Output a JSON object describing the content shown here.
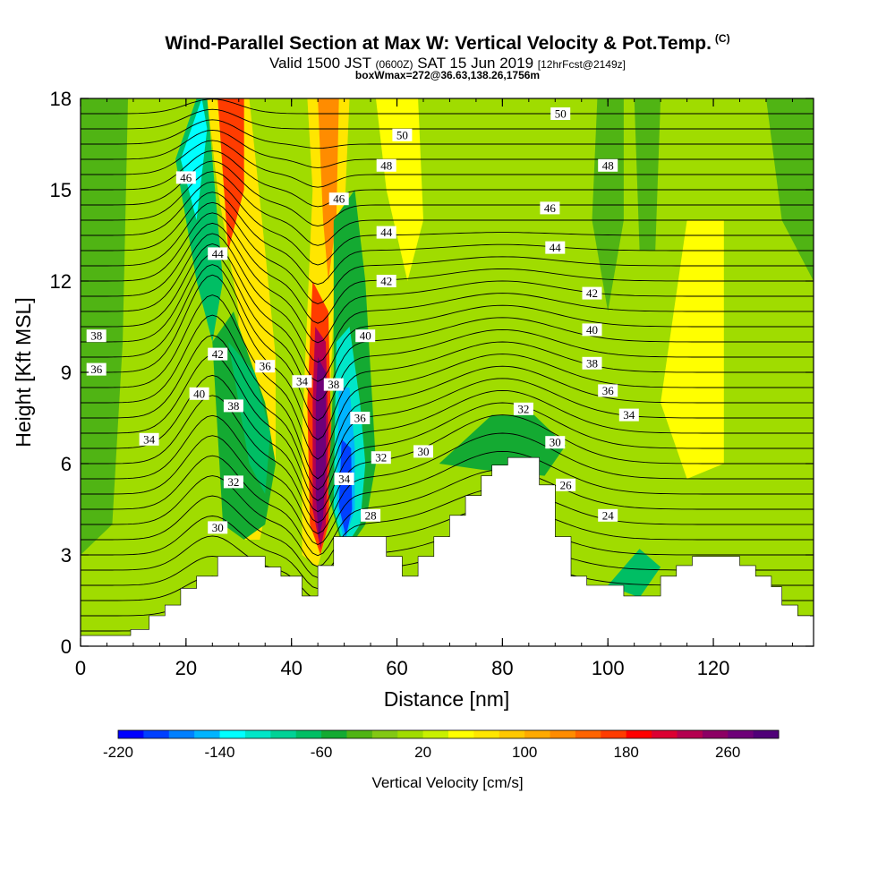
{
  "header": {
    "title": "Wind-Parallel Section at Max W: Vertical Velocity & Pot.Temp.",
    "copyright": "(C)",
    "valid_a": "Valid 1500 JST",
    "valid_b": "(0600Z)",
    "valid_c": "SAT 15 Jun 2019",
    "valid_d": "[12hrFcst@2149z]",
    "boxmax": "boxWmax=272@36.63,138.26,1756m"
  },
  "chart_data": {
    "type": "heatmap",
    "title": "Wind-Parallel Section at Max W: Vertical Velocity & Pot.Temp.",
    "xlabel": "Distance [nm]",
    "ylabel": "Height [Kft MSL]",
    "xlim": [
      0,
      139
    ],
    "ylim": [
      0,
      18
    ],
    "x_ticks": [
      "0",
      "20",
      "40",
      "60",
      "80",
      "100",
      "120"
    ],
    "y_ticks": [
      "0",
      "3",
      "6",
      "9",
      "12",
      "15",
      "18"
    ],
    "colorbar": {
      "label": "Vertical Velocity [cm/s]",
      "tick_labels": [
        "-220",
        "-140",
        "-60",
        "20",
        "100",
        "180",
        "260"
      ],
      "min": -220,
      "max": 300,
      "step": 20,
      "colors": [
        "#0000ff",
        "#0040ff",
        "#0080ff",
        "#00b4ff",
        "#00ffff",
        "#00e6c8",
        "#00d296",
        "#00be64",
        "#14aa32",
        "#50b414",
        "#82c814",
        "#a0dc00",
        "#c8f000",
        "#ffff00",
        "#ffe600",
        "#ffc800",
        "#ffaa00",
        "#ff8c00",
        "#ff6400",
        "#ff3c00",
        "#ff0000",
        "#dc0032",
        "#b40050",
        "#8c0064",
        "#6e0078",
        "#500078"
      ]
    },
    "terrain": [
      [
        0,
        0.35
      ],
      [
        9.5,
        0.35
      ],
      [
        9.5,
        0.55
      ],
      [
        13,
        0.55
      ],
      [
        13,
        1.0
      ],
      [
        16,
        1.0
      ],
      [
        16,
        1.35
      ],
      [
        19,
        1.35
      ],
      [
        19,
        1.9
      ],
      [
        22,
        1.9
      ],
      [
        22,
        2.3
      ],
      [
        26,
        2.3
      ],
      [
        26,
        2.95
      ],
      [
        35,
        2.95
      ],
      [
        35,
        2.6
      ],
      [
        38,
        2.6
      ],
      [
        38,
        2.3
      ],
      [
        42,
        2.3
      ],
      [
        42,
        1.65
      ],
      [
        45,
        1.65
      ],
      [
        45,
        2.65
      ],
      [
        48,
        2.65
      ],
      [
        48,
        3.6
      ],
      [
        58,
        3.6
      ],
      [
        58,
        2.95
      ],
      [
        61,
        2.95
      ],
      [
        61,
        2.3
      ],
      [
        64,
        2.3
      ],
      [
        64,
        2.95
      ],
      [
        67,
        2.95
      ],
      [
        67,
        3.6
      ],
      [
        70,
        3.6
      ],
      [
        70,
        4.3
      ],
      [
        73,
        4.3
      ],
      [
        73,
        4.95
      ],
      [
        76,
        4.95
      ],
      [
        76,
        5.6
      ],
      [
        78,
        5.6
      ],
      [
        78,
        5.95
      ],
      [
        81,
        5.95
      ],
      [
        81,
        6.2
      ],
      [
        87,
        6.2
      ],
      [
        87,
        5.3
      ],
      [
        90,
        5.3
      ],
      [
        90,
        3.6
      ],
      [
        93,
        3.6
      ],
      [
        93,
        2.3
      ],
      [
        96,
        2.3
      ],
      [
        96,
        2.0
      ],
      [
        103,
        2.0
      ],
      [
        103,
        1.65
      ],
      [
        110,
        1.65
      ],
      [
        110,
        2.3
      ],
      [
        113,
        2.3
      ],
      [
        113,
        2.65
      ],
      [
        116,
        2.65
      ],
      [
        116,
        2.95
      ],
      [
        125,
        2.95
      ],
      [
        125,
        2.65
      ],
      [
        128,
        2.65
      ],
      [
        128,
        2.3
      ],
      [
        131,
        2.3
      ],
      [
        131,
        1.95
      ],
      [
        133,
        1.95
      ],
      [
        133,
        1.35
      ],
      [
        136,
        1.35
      ],
      [
        136,
        1.0
      ],
      [
        139,
        1.0
      ]
    ],
    "theta_contour_labels": [
      {
        "value": "50",
        "x": 61,
        "y": 16.8
      },
      {
        "value": "50",
        "x": 91,
        "y": 17.5
      },
      {
        "value": "48",
        "x": 58,
        "y": 15.8
      },
      {
        "value": "48",
        "x": 100,
        "y": 15.8
      },
      {
        "value": "46",
        "x": 20,
        "y": 15.4
      },
      {
        "value": "46",
        "x": 49,
        "y": 14.7
      },
      {
        "value": "46",
        "x": 89,
        "y": 14.4
      },
      {
        "value": "44",
        "x": 26,
        "y": 12.9
      },
      {
        "value": "44",
        "x": 58,
        "y": 13.6
      },
      {
        "value": "44",
        "x": 90,
        "y": 13.1
      },
      {
        "value": "42",
        "x": 26,
        "y": 9.6
      },
      {
        "value": "42",
        "x": 58,
        "y": 12.0
      },
      {
        "value": "42",
        "x": 97,
        "y": 11.6
      },
      {
        "value": "40",
        "x": 22.5,
        "y": 8.3
      },
      {
        "value": "40",
        "x": 54,
        "y": 10.2
      },
      {
        "value": "40",
        "x": 97,
        "y": 10.4
      },
      {
        "value": "38",
        "x": 3,
        "y": 10.2
      },
      {
        "value": "38",
        "x": 29,
        "y": 7.9
      },
      {
        "value": "38",
        "x": 48,
        "y": 8.6
      },
      {
        "value": "38",
        "x": 97,
        "y": 9.3
      },
      {
        "value": "36",
        "x": 3,
        "y": 9.1
      },
      {
        "value": "36",
        "x": 35,
        "y": 9.2
      },
      {
        "value": "36",
        "x": 53,
        "y": 7.5
      },
      {
        "value": "36",
        "x": 100,
        "y": 8.4
      },
      {
        "value": "34",
        "x": 13,
        "y": 6.8
      },
      {
        "value": "34",
        "x": 42,
        "y": 8.7
      },
      {
        "value": "34",
        "x": 50,
        "y": 5.5
      },
      {
        "value": "34",
        "x": 104,
        "y": 7.6
      },
      {
        "value": "32",
        "x": 29,
        "y": 5.4
      },
      {
        "value": "32",
        "x": 57,
        "y": 6.2
      },
      {
        "value": "32",
        "x": 84,
        "y": 7.8
      },
      {
        "value": "30",
        "x": 26,
        "y": 3.9
      },
      {
        "value": "30",
        "x": 65,
        "y": 6.4
      },
      {
        "value": "30",
        "x": 90,
        "y": 6.7
      },
      {
        "value": "28",
        "x": 55,
        "y": 4.3
      },
      {
        "value": "26",
        "x": 92,
        "y": 5.3
      },
      {
        "value": "24",
        "x": 100,
        "y": 4.3
      }
    ]
  }
}
